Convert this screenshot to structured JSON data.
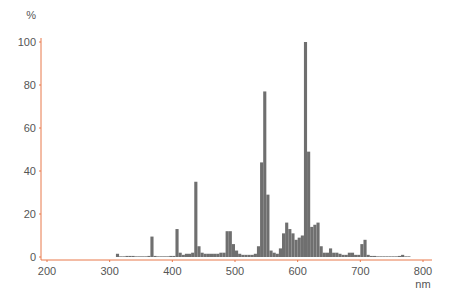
{
  "chart_data": {
    "type": "histogram",
    "x_label": "nm",
    "y_label": "%",
    "bins": [
      300,
      305,
      310,
      315,
      320,
      325,
      330,
      335,
      340,
      345,
      350,
      355,
      360,
      365,
      370,
      375,
      380,
      385,
      390,
      395,
      400,
      405,
      410,
      415,
      420,
      425,
      430,
      435,
      440,
      445,
      450,
      455,
      460,
      465,
      470,
      475,
      480,
      485,
      490,
      495,
      500,
      505,
      510,
      515,
      520,
      525,
      530,
      535,
      540,
      545,
      550,
      555,
      560,
      565,
      570,
      575,
      580,
      585,
      590,
      595,
      600,
      605,
      610,
      615,
      620,
      625,
      630,
      635,
      640,
      645,
      650,
      655,
      660,
      665,
      670,
      675,
      680,
      685,
      690,
      695,
      700,
      705,
      710,
      715,
      720,
      725,
      730,
      735,
      740,
      745,
      750,
      755,
      760,
      765,
      770,
      775,
      780
    ],
    "values": [
      0,
      0,
      1.5,
      0.3,
      0.3,
      0.5,
      0.5,
      0.5,
      0.3,
      0.3,
      0.3,
      0.3,
      0.5,
      9.5,
      0.5,
      0.3,
      0.3,
      0.3,
      0.3,
      0.5,
      0.5,
      13,
      2,
      1,
      1.5,
      1.5,
      2,
      35,
      5,
      2,
      1.5,
      1.5,
      1.5,
      1.5,
      1.5,
      2,
      2,
      12,
      12,
      6,
      3,
      1.5,
      1,
      1,
      1,
      1,
      1.5,
      5,
      44,
      77,
      29,
      3,
      2,
      1.5,
      4,
      11,
      16,
      13,
      11,
      8,
      9,
      10,
      100,
      49,
      14,
      15,
      16,
      5,
      2,
      2,
      4,
      2,
      2,
      1.5,
      1,
      1,
      2,
      2,
      1,
      1,
      6,
      8,
      1,
      0.5,
      0.5,
      0.3,
      0.3,
      0.3,
      0.3,
      0.3,
      0.3,
      0.3,
      0.5,
      1,
      0.3,
      0.3
    ],
    "color": "#6f6f6f",
    "xlim": [
      200,
      800
    ],
    "xticks": [
      200,
      300,
      400,
      500,
      600,
      700,
      800
    ],
    "ylim": [
      0,
      100
    ],
    "yticks": [
      0,
      20,
      40,
      60,
      80,
      100
    ],
    "grid": false
  }
}
